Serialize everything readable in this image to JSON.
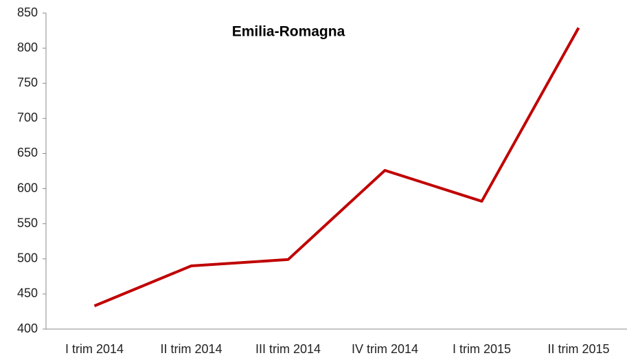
{
  "chart_data": {
    "type": "line",
    "title": "Emilia-Romagna",
    "categories": [
      "I trim 2014",
      "II trim 2014",
      "III trim 2014",
      "IV trim 2014",
      "I trim 2015",
      "II trim 2015"
    ],
    "values": [
      433,
      490,
      499,
      626,
      582,
      829
    ],
    "color": "#c00000",
    "ylim": [
      400,
      850
    ],
    "yticks": [
      400,
      450,
      500,
      550,
      600,
      650,
      700,
      750,
      800,
      850
    ],
    "grid": false
  }
}
